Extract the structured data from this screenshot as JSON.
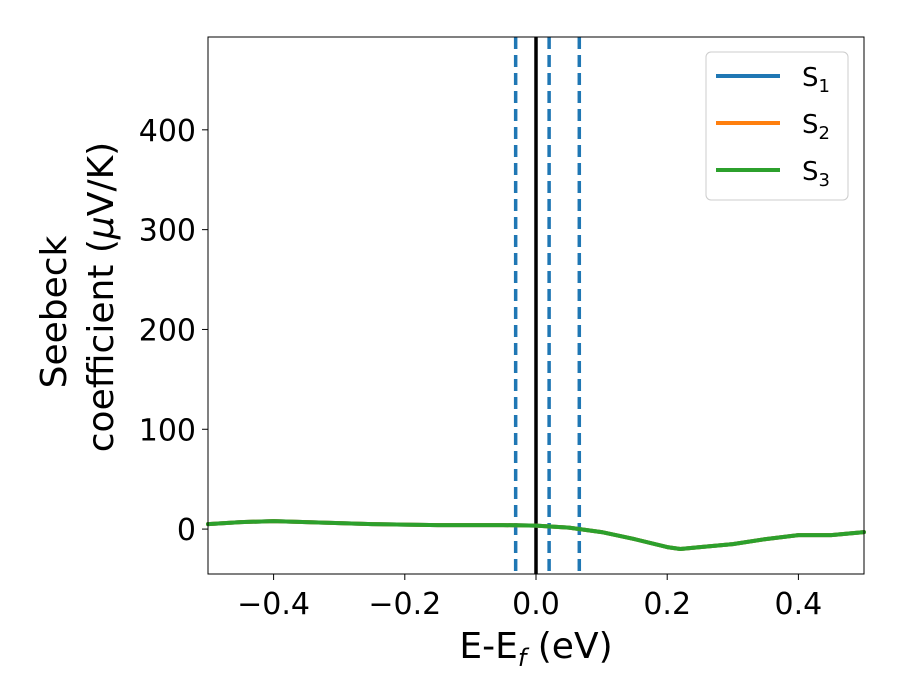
{
  "chart_data": {
    "type": "line",
    "xlabel": "E-E",
    "xlabel_sub": "f",
    "xlabel_unit": " (eV)",
    "ylabel_line1": "Seebeck",
    "ylabel_line2_pre": "coefficient  (",
    "ylabel_mu": "μ",
    "ylabel_line2_post": "V/K)",
    "xlim": [
      -0.5,
      0.5
    ],
    "ylim": [
      -45,
      493
    ],
    "xticks": [
      -0.4,
      -0.2,
      0.0,
      0.2,
      0.4
    ],
    "xtick_labels": [
      "−0.4",
      "−0.2",
      "0.0",
      "0.2",
      "0.4"
    ],
    "yticks": [
      0,
      100,
      200,
      300,
      400
    ],
    "ytick_labels": [
      "0",
      "100",
      "200",
      "300",
      "400"
    ],
    "grid": false,
    "legend": "top-right",
    "vlines": [
      {
        "x": -0.031,
        "style": "dashed",
        "color": "#1f77b4"
      },
      {
        "x": 0.0,
        "style": "solid",
        "color": "#000000"
      },
      {
        "x": 0.02,
        "style": "dashed",
        "color": "#1f77b4"
      },
      {
        "x": 0.066,
        "style": "dashed",
        "color": "#1f77b4"
      }
    ],
    "x": [
      -0.5,
      -0.45,
      -0.4,
      -0.35,
      -0.3,
      -0.25,
      -0.2,
      -0.15,
      -0.1,
      -0.05,
      0.0,
      0.05,
      0.1,
      0.15,
      0.2,
      0.22,
      0.25,
      0.3,
      0.35,
      0.4,
      0.45,
      0.5
    ],
    "series": [
      {
        "name": "S",
        "sub": "1",
        "color": "#1f77b4",
        "values": [
          5,
          7,
          8,
          7,
          6,
          5,
          4.5,
          4,
          4,
          4,
          3.5,
          1.5,
          -3,
          -10,
          -18,
          -20,
          -18,
          -15,
          -10,
          -6,
          -6,
          -3
        ]
      },
      {
        "name": "S",
        "sub": "2",
        "color": "#ff7f0e",
        "values": [
          5,
          7,
          8,
          7,
          6,
          5,
          4.5,
          4,
          4,
          4,
          3.5,
          1.5,
          -3,
          -10,
          -18,
          -20,
          -18,
          -15,
          -10,
          -6,
          -6,
          -3
        ]
      },
      {
        "name": "S",
        "sub": "3",
        "color": "#2ca02c",
        "values": [
          5,
          7,
          8,
          7,
          6,
          5,
          4.5,
          4,
          4,
          4,
          3.5,
          1.5,
          -3,
          -10,
          -18,
          -20,
          -18,
          -15,
          -10,
          -6,
          -6,
          -3
        ]
      }
    ]
  }
}
